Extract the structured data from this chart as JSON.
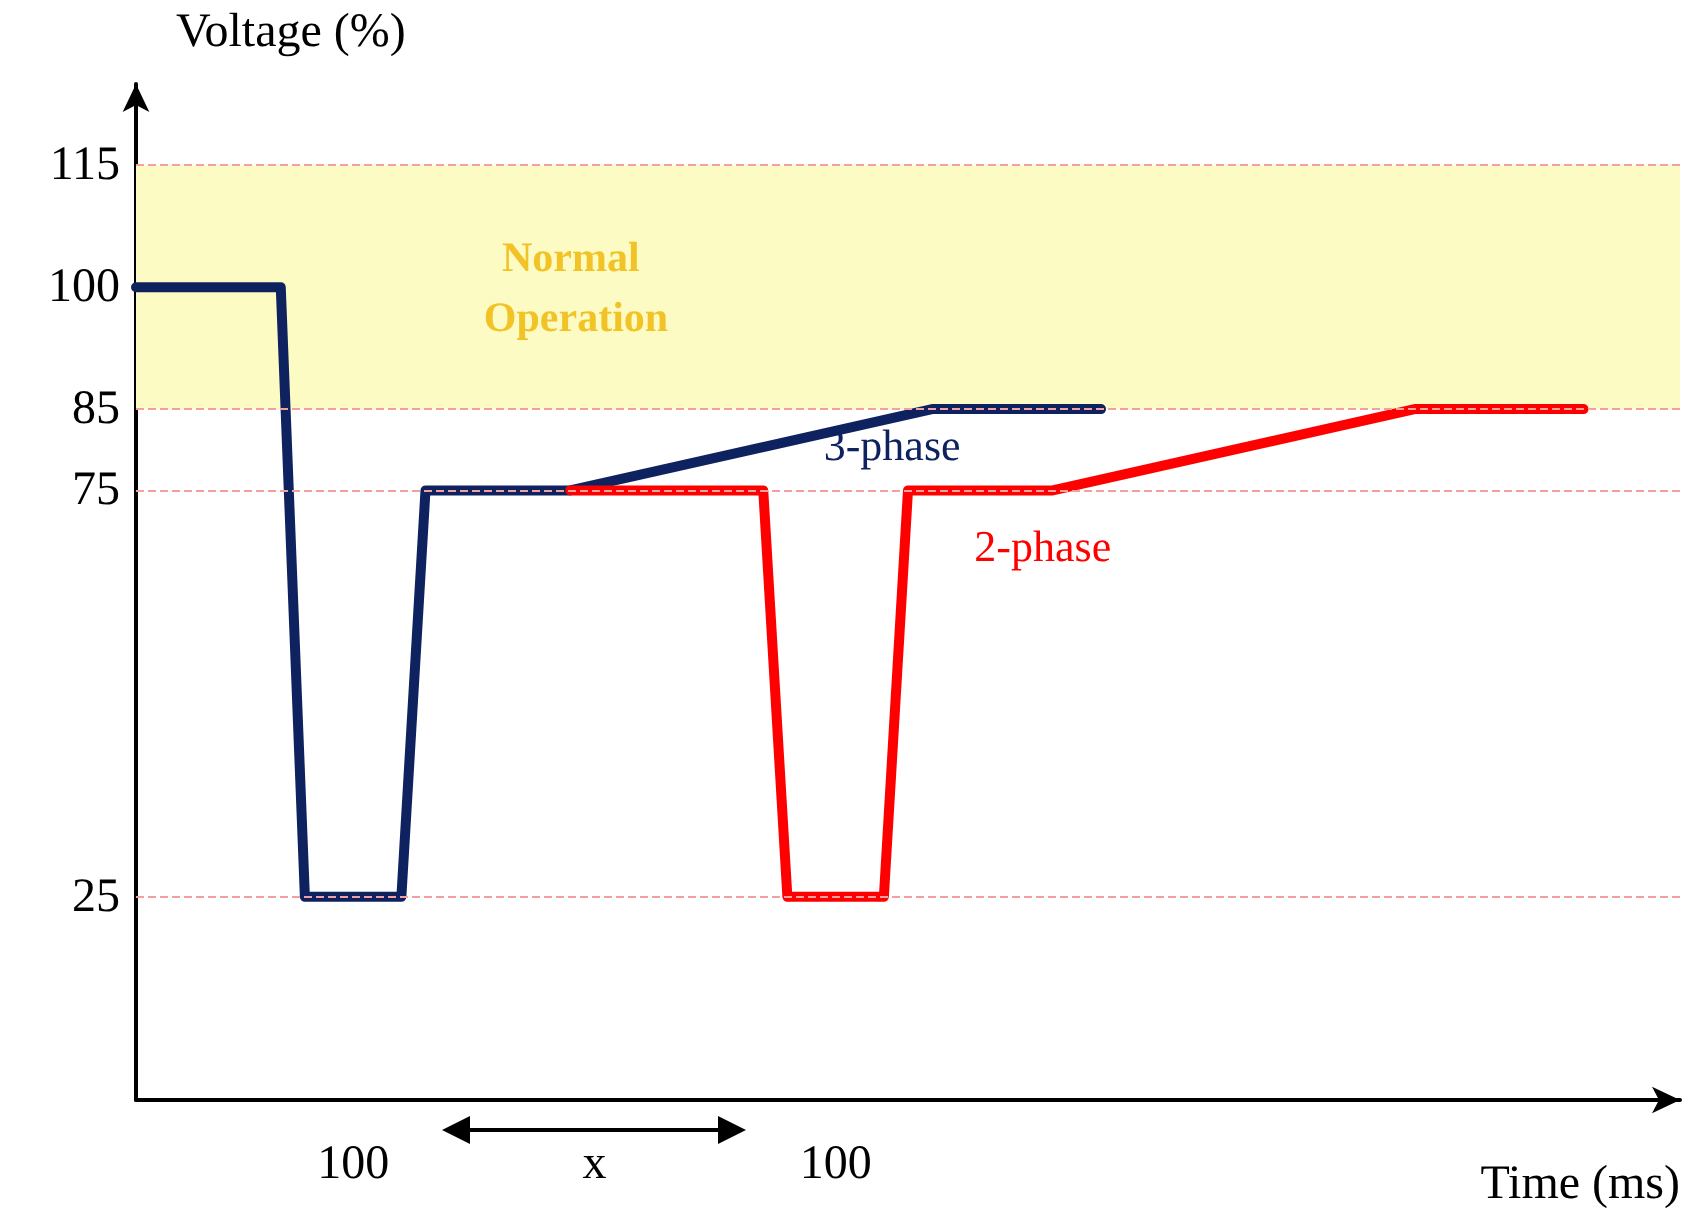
{
  "chart_data": {
    "type": "line",
    "xlabel": "Time (ms)",
    "ylabel": "Voltage (%)",
    "categories": [
      null,
      null,
      null,
      null,
      null,
      null,
      null,
      null,
      null,
      "100",
      null,
      null,
      null,
      null,
      null,
      null,
      null,
      null,
      null,
      "x",
      null,
      null,
      null,
      null,
      null,
      null,
      null,
      null,
      null,
      "100",
      null,
      null,
      null,
      null,
      null,
      null,
      null,
      null,
      null,
      null,
      null,
      null,
      null,
      null,
      null,
      null,
      null,
      null,
      null,
      null,
      null,
      null,
      null,
      null,
      null,
      null,
      null,
      null,
      null,
      null,
      null,
      null,
      null,
      null,
      null
    ],
    "ylim": [
      0,
      125
    ],
    "yticks": [
      25,
      75,
      85,
      100,
      115
    ],
    "series": [
      {
        "name": "3-phase",
        "color": "#0f2260",
        "values": [
          100,
          null,
          null,
          null,
          null,
          null,
          100,
          25,
          null,
          null,
          null,
          25,
          75,
          null,
          null,
          null,
          null,
          null,
          75,
          null,
          null,
          null,
          null,
          null,
          null,
          null,
          null,
          null,
          null,
          null,
          null,
          null,
          null,
          85,
          null,
          null,
          null,
          null,
          null,
          null,
          85,
          null,
          null,
          null,
          null,
          null,
          null,
          null,
          null,
          null,
          null,
          null,
          null,
          null,
          null,
          null,
          null,
          null,
          null,
          null,
          null,
          null,
          null,
          null,
          null
        ]
      },
      {
        "name": "2-phase",
        "color": "#ff0000",
        "values": [
          null,
          null,
          null,
          null,
          null,
          null,
          null,
          null,
          null,
          null,
          null,
          null,
          null,
          null,
          null,
          null,
          null,
          null,
          75,
          null,
          null,
          null,
          null,
          null,
          null,
          null,
          75,
          25,
          null,
          null,
          null,
          25,
          75,
          null,
          null,
          null,
          null,
          null,
          75,
          null,
          null,
          null,
          null,
          null,
          null,
          null,
          null,
          null,
          null,
          null,
          null,
          null,
          null,
          85,
          null,
          null,
          null,
          null,
          null,
          null,
          85,
          null,
          null,
          null,
          null
        ]
      }
    ],
    "ref_lines": [
      {
        "axis": "y",
        "value": 115,
        "color": "#f4a0a0",
        "line_style": "dashed"
      },
      {
        "axis": "y",
        "value": 85,
        "color": "#f4a0a0",
        "line_style": "dashed"
      },
      {
        "axis": "y",
        "value": 75,
        "color": "#f4a0a0",
        "line_style": "dashed"
      },
      {
        "axis": "y",
        "value": 25,
        "color": "#f4a0a0",
        "line_style": "dashed"
      }
    ],
    "bands": [
      {
        "axis": "y",
        "from": 85,
        "to": 115,
        "label": "Normal Operation",
        "color": "#fdfbc4"
      }
    ],
    "grid": false,
    "legend": false,
    "marker": "none",
    "line_style": "solid"
  }
}
